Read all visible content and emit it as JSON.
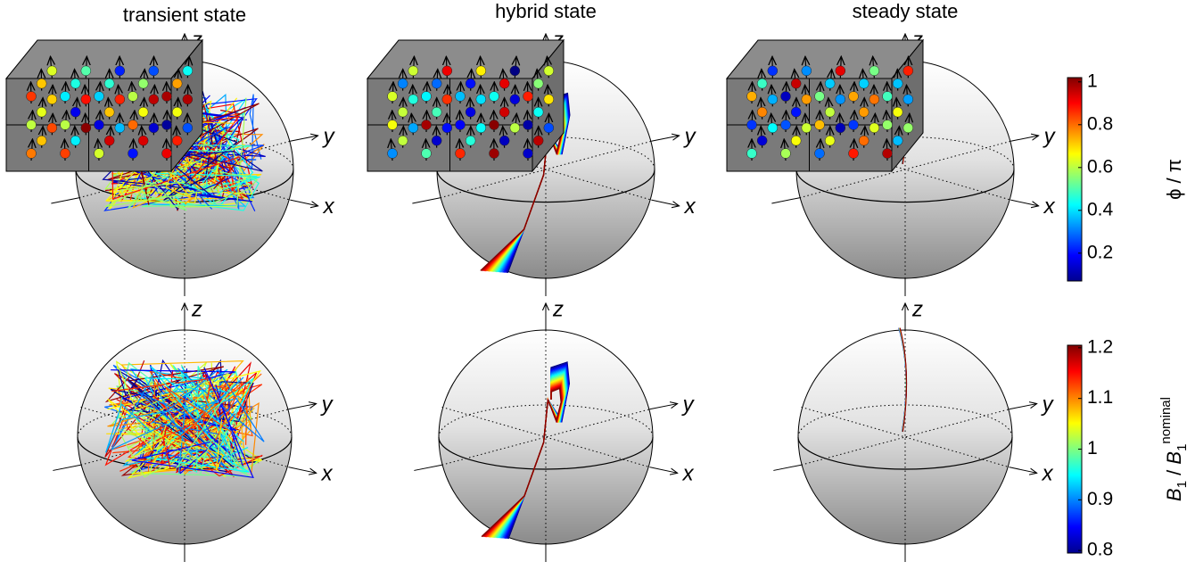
{
  "titles": [
    "transient state",
    "hybrid state",
    "steady state"
  ],
  "axis_labels": {
    "x": "x",
    "y": "y",
    "z": "z"
  },
  "colorbars": [
    {
      "label": {
        "main": "ϕ / π"
      },
      "lim": [
        0.07,
        1.02
      ],
      "ticks": [
        0.2,
        0.4,
        0.6,
        0.8,
        1
      ]
    },
    {
      "label": {
        "b1": "B",
        "s1": "1",
        "sep": " / ",
        "b2": "B",
        "s2": "1",
        "sup": "nominal"
      },
      "lim": [
        0.795,
        1.205
      ],
      "ticks": [
        0.8,
        0.9,
        1,
        1.1,
        1.2
      ]
    }
  ]
}
